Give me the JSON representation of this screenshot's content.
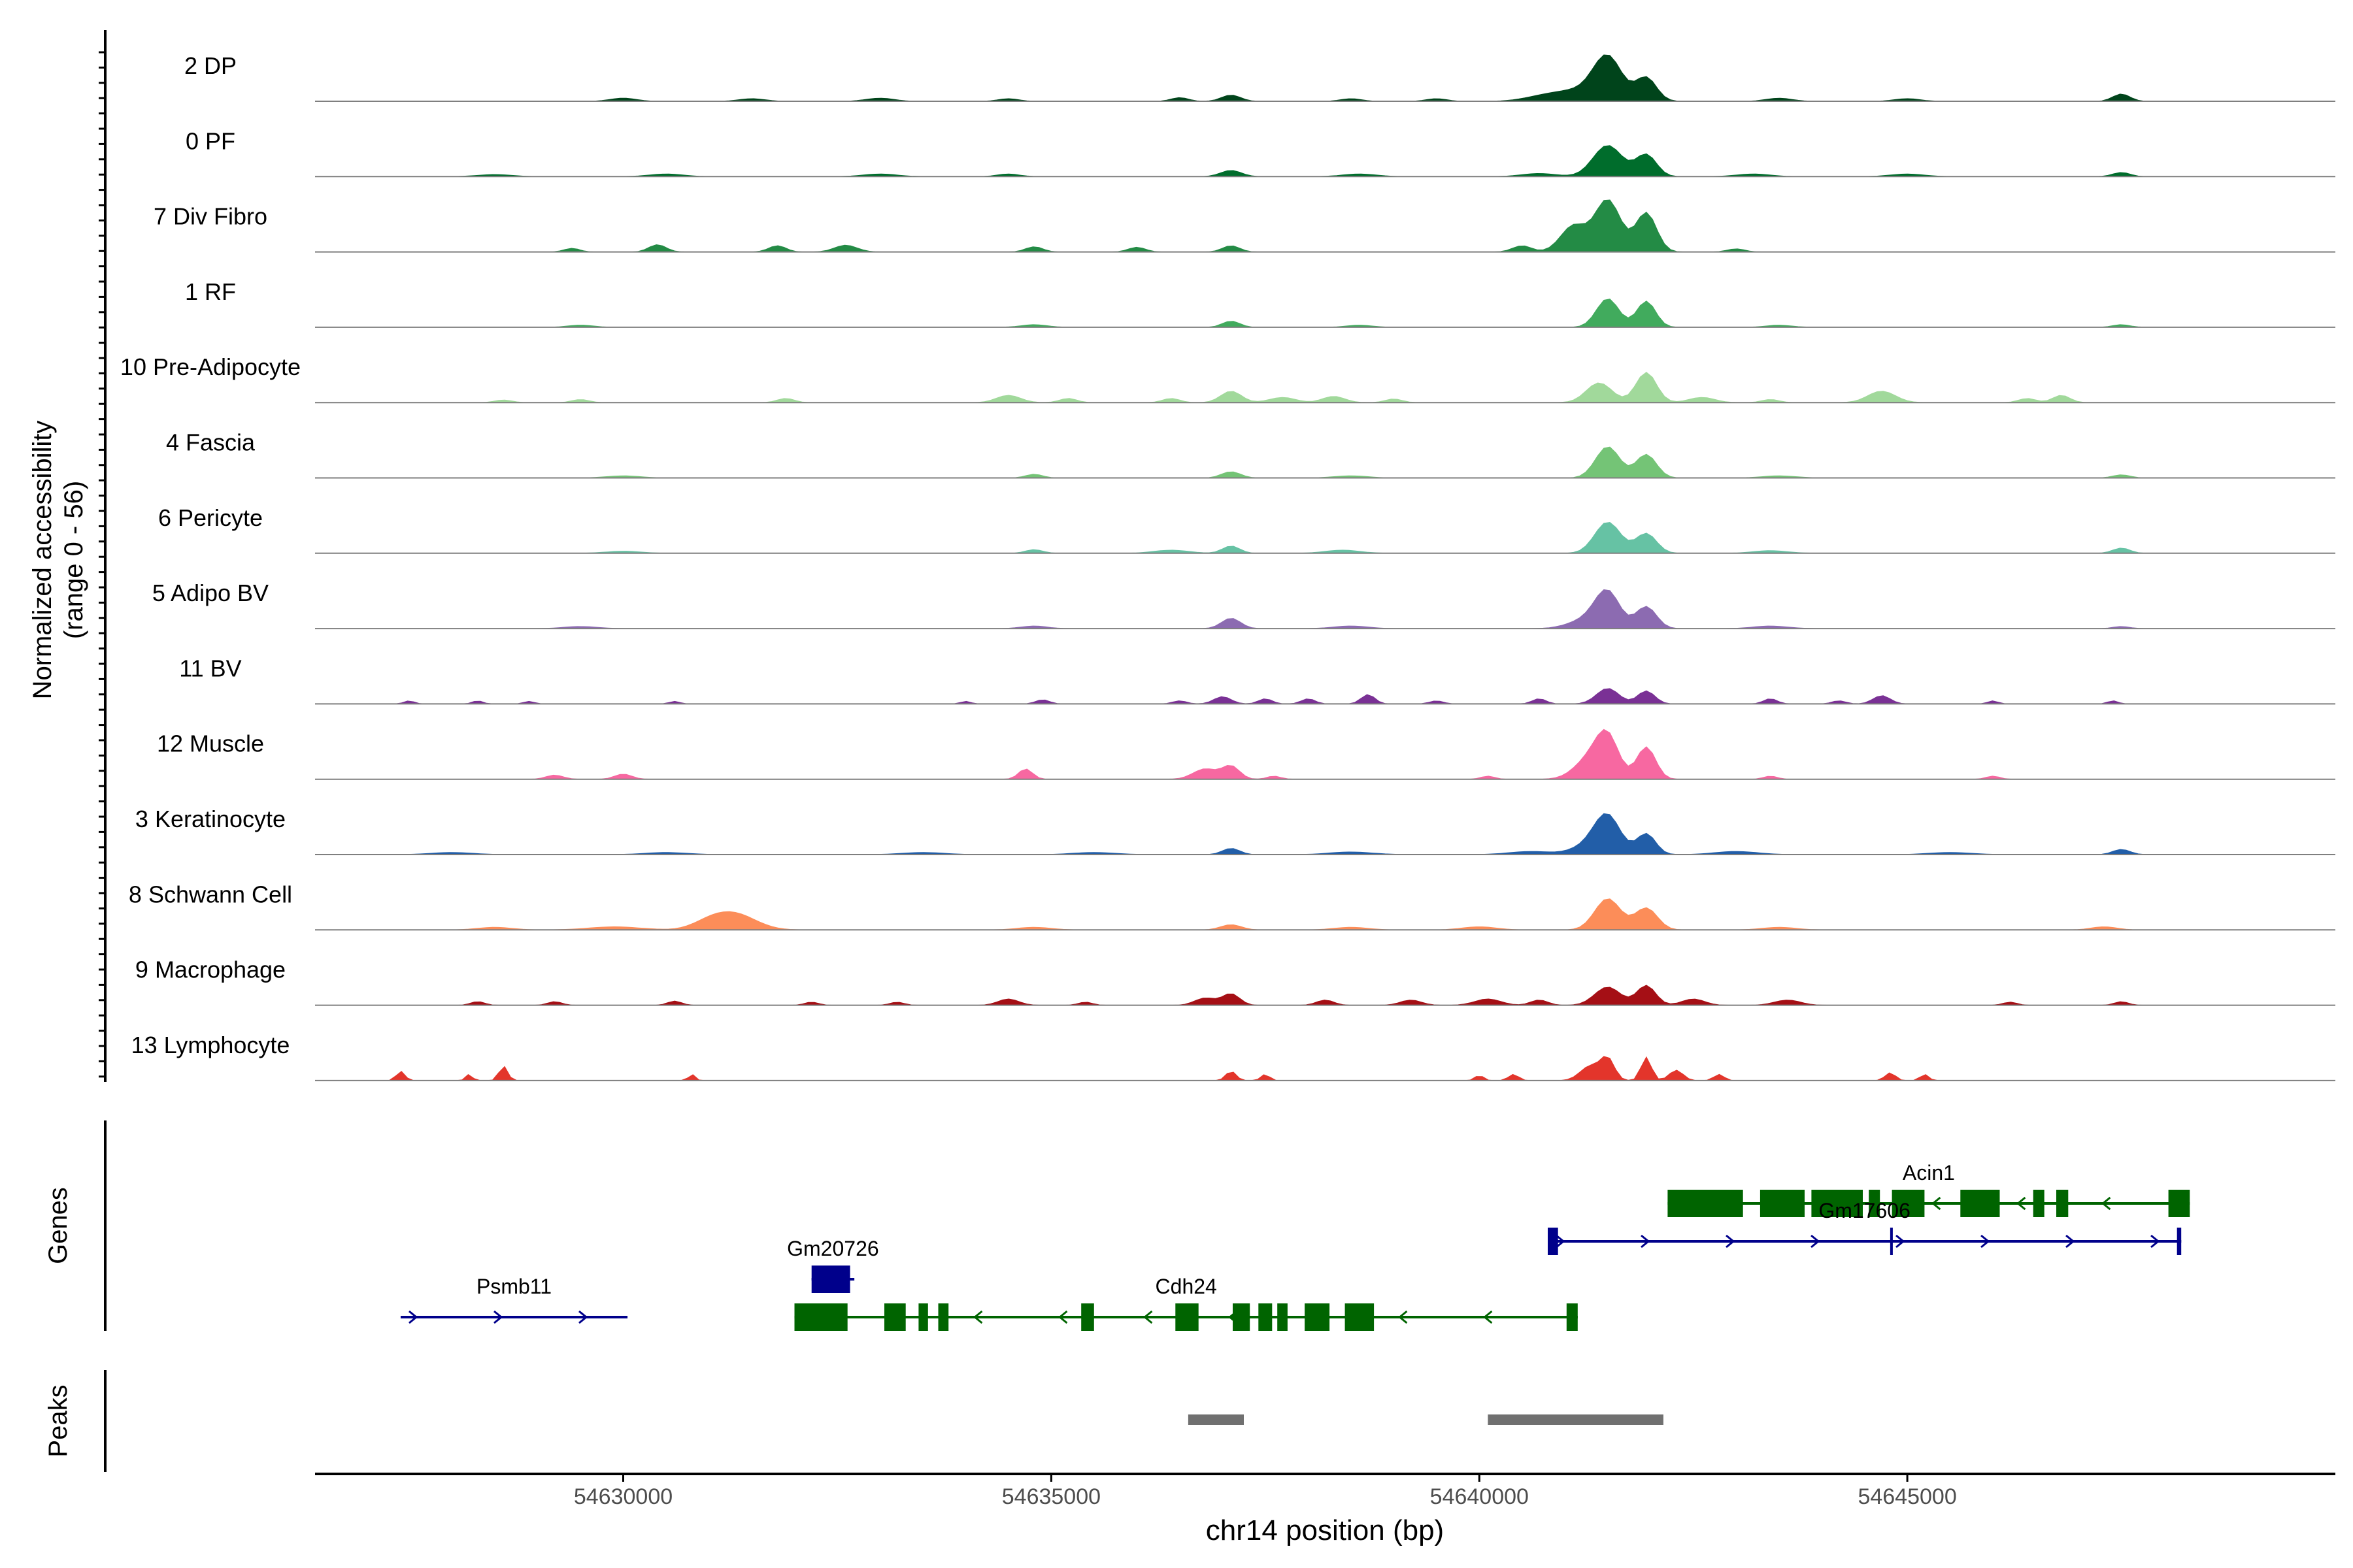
{
  "chart_data": {
    "type": "area",
    "title": "",
    "y_axis_label_line1": "Normalized accessibility",
    "y_axis_label_line2": "(range 0 - 56)",
    "ylim": [
      0,
      56
    ],
    "xlabel": "chr14 position (bp)",
    "xlim": [
      54626400,
      54650000
    ],
    "x_ticks": [
      54630000,
      54635000,
      54640000,
      54645000
    ],
    "x_tick_labels": [
      "54630000",
      "54635000",
      "54640000",
      "54645000"
    ],
    "tracks": [
      {
        "name": "2 DP",
        "color": "#00441b",
        "peaks": [
          [
            54630000,
            0.06,
            150
          ],
          [
            54631500,
            0.05,
            150
          ],
          [
            54633000,
            0.06,
            160
          ],
          [
            54634500,
            0.05,
            120
          ],
          [
            54636500,
            0.07,
            100
          ],
          [
            54637100,
            0.12,
            110
          ],
          [
            54638500,
            0.05,
            120
          ],
          [
            54639500,
            0.05,
            120
          ],
          [
            54640800,
            0.1,
            250
          ],
          [
            54641300,
            0.22,
            300
          ],
          [
            54641500,
            0.72,
            160
          ],
          [
            54641950,
            0.44,
            120
          ],
          [
            54643500,
            0.06,
            150
          ],
          [
            54645000,
            0.05,
            150
          ],
          [
            54647500,
            0.14,
            100
          ]
        ]
      },
      {
        "name": "0 PF",
        "color": "#006d2c",
        "peaks": [
          [
            54628500,
            0.04,
            200
          ],
          [
            54630500,
            0.05,
            200
          ],
          [
            54633000,
            0.05,
            200
          ],
          [
            54634500,
            0.05,
            130
          ],
          [
            54637100,
            0.12,
            120
          ],
          [
            54638600,
            0.05,
            200
          ],
          [
            54640700,
            0.06,
            200
          ],
          [
            54641500,
            0.6,
            170
          ],
          [
            54641950,
            0.42,
            120
          ],
          [
            54643200,
            0.05,
            200
          ],
          [
            54645000,
            0.05,
            200
          ],
          [
            54647500,
            0.08,
            100
          ]
        ]
      },
      {
        "name": "7 Div Fibro",
        "color": "#238b45",
        "peaks": [
          [
            54629400,
            0.07,
            90
          ],
          [
            54630400,
            0.14,
            100
          ],
          [
            54631800,
            0.12,
            100
          ],
          [
            54632600,
            0.13,
            130
          ],
          [
            54634800,
            0.1,
            100
          ],
          [
            54636000,
            0.09,
            100
          ],
          [
            54637100,
            0.12,
            100
          ],
          [
            54640500,
            0.12,
            110
          ],
          [
            54641100,
            0.5,
            150
          ],
          [
            54641500,
            1.0,
            150
          ],
          [
            54641950,
            0.75,
            120
          ],
          [
            54643000,
            0.06,
            100
          ]
        ]
      },
      {
        "name": "1 RF",
        "color": "#41ab5d",
        "peaks": [
          [
            54629500,
            0.04,
            150
          ],
          [
            54634800,
            0.05,
            150
          ],
          [
            54637100,
            0.12,
            100
          ],
          [
            54638600,
            0.04,
            150
          ],
          [
            54641500,
            0.55,
            130
          ],
          [
            54641950,
            0.5,
            110
          ],
          [
            54643500,
            0.04,
            150
          ],
          [
            54647500,
            0.05,
            100
          ]
        ]
      },
      {
        "name": "10 Pre-Adipocyte",
        "color": "#a1d99b",
        "peaks": [
          [
            54628600,
            0.05,
            100
          ],
          [
            54629500,
            0.06,
            100
          ],
          [
            54631900,
            0.08,
            100
          ],
          [
            54634500,
            0.14,
            140
          ],
          [
            54635200,
            0.08,
            100
          ],
          [
            54636400,
            0.08,
            100
          ],
          [
            54637100,
            0.22,
            120
          ],
          [
            54637700,
            0.1,
            150
          ],
          [
            54638300,
            0.12,
            130
          ],
          [
            54639000,
            0.07,
            100
          ],
          [
            54641400,
            0.38,
            150
          ],
          [
            54641950,
            0.58,
            120
          ],
          [
            54642600,
            0.1,
            150
          ],
          [
            54643400,
            0.06,
            100
          ],
          [
            54644700,
            0.22,
            160
          ],
          [
            54646400,
            0.08,
            100
          ],
          [
            54646800,
            0.14,
            100
          ]
        ]
      },
      {
        "name": "4 Fascia",
        "color": "#74c476",
        "peaks": [
          [
            54630000,
            0.04,
            200
          ],
          [
            54634800,
            0.07,
            100
          ],
          [
            54637100,
            0.12,
            110
          ],
          [
            54638500,
            0.04,
            200
          ],
          [
            54641500,
            0.6,
            140
          ],
          [
            54641950,
            0.45,
            120
          ],
          [
            54643500,
            0.04,
            200
          ],
          [
            54647500,
            0.06,
            100
          ]
        ]
      },
      {
        "name": "6 Pericyte",
        "color": "#66c2a4",
        "peaks": [
          [
            54630000,
            0.04,
            200
          ],
          [
            54634800,
            0.07,
            100
          ],
          [
            54636400,
            0.06,
            200
          ],
          [
            54637100,
            0.14,
            100
          ],
          [
            54638400,
            0.06,
            200
          ],
          [
            54641500,
            0.6,
            150
          ],
          [
            54641950,
            0.38,
            120
          ],
          [
            54643400,
            0.05,
            200
          ],
          [
            54647500,
            0.1,
            100
          ]
        ]
      },
      {
        "name": "5 Adipo BV",
        "color": "#8c6bb1",
        "peaks": [
          [
            54629500,
            0.04,
            200
          ],
          [
            54634800,
            0.05,
            150
          ],
          [
            54637100,
            0.2,
            110
          ],
          [
            54638500,
            0.05,
            200
          ],
          [
            54641300,
            0.2,
            220
          ],
          [
            54641500,
            0.62,
            140
          ],
          [
            54641950,
            0.42,
            120
          ],
          [
            54643400,
            0.05,
            200
          ],
          [
            54647500,
            0.04,
            100
          ]
        ]
      },
      {
        "name": "11 BV",
        "color": "#7a3195",
        "peaks": [
          [
            54627500,
            0.06,
            60
          ],
          [
            54628300,
            0.06,
            60
          ],
          [
            54628900,
            0.05,
            60
          ],
          [
            54630600,
            0.05,
            60
          ],
          [
            54634000,
            0.05,
            60
          ],
          [
            54634900,
            0.08,
            80
          ],
          [
            54636500,
            0.06,
            80
          ],
          [
            54637000,
            0.14,
            100
          ],
          [
            54637500,
            0.1,
            80
          ],
          [
            54638000,
            0.1,
            80
          ],
          [
            54638700,
            0.18,
            80
          ],
          [
            54639500,
            0.06,
            80
          ],
          [
            54640700,
            0.1,
            80
          ],
          [
            54641500,
            0.3,
            130
          ],
          [
            54641950,
            0.25,
            100
          ],
          [
            54643400,
            0.1,
            80
          ],
          [
            54644200,
            0.06,
            80
          ],
          [
            54644700,
            0.16,
            100
          ],
          [
            54646000,
            0.06,
            60
          ],
          [
            54647400,
            0.06,
            60
          ]
        ]
      },
      {
        "name": "12 Muscle",
        "color": "#f768a1",
        "peaks": [
          [
            54629200,
            0.08,
            100
          ],
          [
            54630000,
            0.1,
            100
          ],
          [
            54634700,
            0.2,
            80
          ],
          [
            54636800,
            0.2,
            140
          ],
          [
            54637100,
            0.25,
            100
          ],
          [
            54637600,
            0.06,
            80
          ],
          [
            54640100,
            0.06,
            80
          ],
          [
            54641300,
            0.4,
            180
          ],
          [
            54641500,
            0.72,
            130
          ],
          [
            54641950,
            0.62,
            110
          ],
          [
            54643400,
            0.06,
            80
          ],
          [
            54646000,
            0.06,
            80
          ]
        ]
      },
      {
        "name": "3 Keratinocyte",
        "color": "#225ea8",
        "peaks": [
          [
            54628000,
            0.04,
            250
          ],
          [
            54630500,
            0.04,
            250
          ],
          [
            54633500,
            0.04,
            250
          ],
          [
            54635500,
            0.04,
            250
          ],
          [
            54637100,
            0.12,
            100
          ],
          [
            54638500,
            0.05,
            250
          ],
          [
            54640600,
            0.06,
            250
          ],
          [
            54641300,
            0.18,
            200
          ],
          [
            54641500,
            0.68,
            150
          ],
          [
            54641950,
            0.4,
            110
          ],
          [
            54643000,
            0.06,
            250
          ],
          [
            54645500,
            0.04,
            250
          ],
          [
            54647500,
            0.1,
            100
          ]
        ]
      },
      {
        "name": "8 Schwann Cell",
        "color": "#fc8d59",
        "peaks": [
          [
            54628500,
            0.05,
            200
          ],
          [
            54629900,
            0.06,
            300
          ],
          [
            54631300,
            0.3,
            250
          ],
          [
            54631000,
            0.12,
            200
          ],
          [
            54634800,
            0.05,
            200
          ],
          [
            54637100,
            0.1,
            120
          ],
          [
            54638500,
            0.05,
            200
          ],
          [
            54640000,
            0.06,
            200
          ],
          [
            54641500,
            0.6,
            150
          ],
          [
            54641950,
            0.42,
            130
          ],
          [
            54643500,
            0.05,
            200
          ],
          [
            54647300,
            0.06,
            150
          ]
        ]
      },
      {
        "name": "9 Macrophage",
        "color": "#a50f15",
        "peaks": [
          [
            54628300,
            0.07,
            80
          ],
          [
            54629200,
            0.07,
            80
          ],
          [
            54630600,
            0.08,
            80
          ],
          [
            54632200,
            0.06,
            80
          ],
          [
            54633200,
            0.06,
            80
          ],
          [
            54634500,
            0.12,
            120
          ],
          [
            54635400,
            0.06,
            80
          ],
          [
            54636800,
            0.14,
            120
          ],
          [
            54637100,
            0.22,
            100
          ],
          [
            54638200,
            0.1,
            100
          ],
          [
            54639200,
            0.1,
            120
          ],
          [
            54640100,
            0.12,
            150
          ],
          [
            54640700,
            0.1,
            100
          ],
          [
            54641500,
            0.35,
            150
          ],
          [
            54641950,
            0.38,
            110
          ],
          [
            54642500,
            0.12,
            130
          ],
          [
            54643600,
            0.1,
            150
          ],
          [
            54646200,
            0.06,
            80
          ],
          [
            54647500,
            0.07,
            80
          ]
        ]
      },
      {
        "name": "13 Lymphocyte",
        "color": "#e3352b",
        "peaks": [
          [
            54627400,
            0.18,
            50
          ],
          [
            54628200,
            0.12,
            40
          ],
          [
            54628600,
            0.28,
            50
          ],
          [
            54630800,
            0.12,
            40
          ],
          [
            54637100,
            0.18,
            60
          ],
          [
            54637500,
            0.12,
            50
          ],
          [
            54640000,
            0.1,
            50
          ],
          [
            54640400,
            0.12,
            60
          ],
          [
            54641300,
            0.28,
            120
          ],
          [
            54641500,
            0.4,
            80
          ],
          [
            54641950,
            0.45,
            60
          ],
          [
            54642300,
            0.2,
            80
          ],
          [
            54642800,
            0.12,
            60
          ],
          [
            54644800,
            0.15,
            60
          ],
          [
            54645200,
            0.12,
            50
          ]
        ]
      }
    ],
    "genes_panel_label": "Genes",
    "genes": [
      {
        "name": "Acin1",
        "strand": "-",
        "color": "#006400",
        "start": 54642200,
        "end": 54648300,
        "row": 0,
        "exons": [
          [
            54642200,
            54643080
          ],
          [
            54643280,
            54643800
          ],
          [
            54643880,
            54644480
          ],
          [
            54644550,
            54644680
          ],
          [
            54644820,
            54645200
          ],
          [
            54645620,
            54646080
          ],
          [
            54646470,
            54646600
          ],
          [
            54646740,
            54646880
          ],
          [
            54648050,
            54648300
          ]
        ]
      },
      {
        "name": "Gm17606",
        "strand": "+",
        "color": "#00008b",
        "start": 54640800,
        "end": 54648200,
        "row": 1,
        "exons": [
          [
            54640800,
            54640920
          ],
          [
            54644800,
            54644830
          ],
          [
            54648150,
            54648200
          ]
        ]
      },
      {
        "name": "Gm20726",
        "strand": "+",
        "color": "#00008b",
        "start": 54632200,
        "end": 54632700,
        "row": 2,
        "exons": [
          [
            54632200,
            54632650
          ]
        ]
      },
      {
        "name": "Psmb11",
        "strand": "+",
        "color": "#00008b",
        "start": 54627400,
        "end": 54630050,
        "row": 3,
        "exons": []
      },
      {
        "name": "Cdh24",
        "strand": "-",
        "color": "#006400",
        "start": 54632000,
        "end": 54641150,
        "row": 3,
        "exons": [
          [
            54632000,
            54632620
          ],
          [
            54633050,
            54633300
          ],
          [
            54633450,
            54633560
          ],
          [
            54633680,
            54633800
          ],
          [
            54635350,
            54635500
          ],
          [
            54636450,
            54636720
          ],
          [
            54637120,
            54637320
          ],
          [
            54637420,
            54637580
          ],
          [
            54637640,
            54637760
          ],
          [
            54637960,
            54638250
          ],
          [
            54638430,
            54638770
          ],
          [
            54641020,
            54641150
          ]
        ]
      }
    ],
    "peaks_panel_label": "Peaks",
    "peak_regions": [
      [
        54636600,
        54637250
      ],
      [
        54640100,
        54642150
      ]
    ]
  }
}
